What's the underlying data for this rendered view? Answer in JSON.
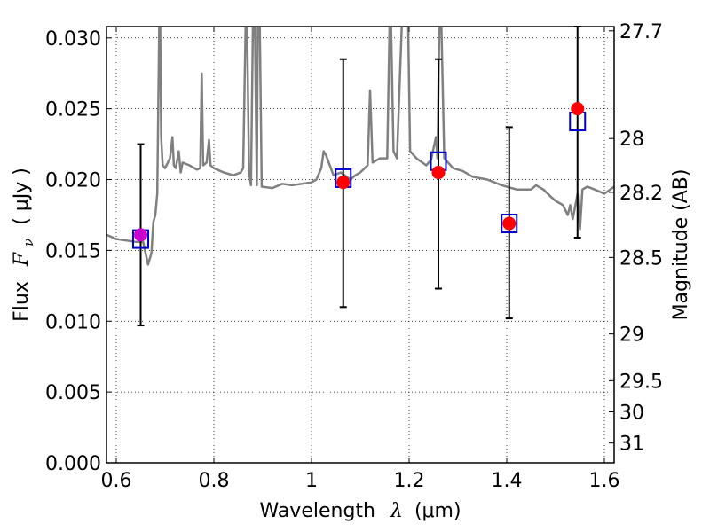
{
  "chart_data": {
    "type": "scatter",
    "xlabel": "Wavelength",
    "xlabel_symbol": "λ",
    "xlabel_unit": "(μm)",
    "ylabel": "Flux",
    "ylabel_symbol": "F",
    "ylabel_subscript": "ν",
    "ylabel_unit": "( μJy )",
    "y2label": "Magnitude (AB)",
    "xlim": [
      0.58,
      1.62
    ],
    "ylim": [
      0.0,
      0.0308
    ],
    "grid": true,
    "x_ticks": [
      0.6,
      0.8,
      1.0,
      1.2,
      1.4,
      1.6
    ],
    "x_tick_labels": [
      "0.6",
      "0.8",
      "1",
      "1.2",
      "1.4",
      "1.6"
    ],
    "y_ticks": [
      0.0,
      0.005,
      0.01,
      0.015,
      0.02,
      0.025,
      0.03
    ],
    "y_tick_labels": [
      "0.000",
      "0.005",
      "0.010",
      "0.015",
      "0.020",
      "0.025",
      "0.030"
    ],
    "y2_ticks": [
      {
        "label": "27.7",
        "flux": 0.0305
      },
      {
        "label": "28",
        "flux": 0.0229
      },
      {
        "label": "28.2",
        "flux": 0.0191
      },
      {
        "label": "28.5",
        "flux": 0.0145
      },
      {
        "label": "29",
        "flux": 0.0091
      },
      {
        "label": "29.5",
        "flux": 0.0058
      },
      {
        "label": "30",
        "flux": 0.0036
      },
      {
        "label": "31",
        "flux": 0.0014
      }
    ],
    "series": [
      {
        "kind": "spectrum",
        "color": "#808080",
        "points": [
          [
            0.58,
            0.0161
          ],
          [
            0.6,
            0.0158
          ],
          [
            0.62,
            0.0157
          ],
          [
            0.64,
            0.0156
          ],
          [
            0.655,
            0.0156
          ],
          [
            0.665,
            0.014
          ],
          [
            0.672,
            0.0148
          ],
          [
            0.676,
            0.017
          ],
          [
            0.68,
            0.0175
          ],
          [
            0.684,
            0.019
          ],
          [
            0.688,
            0.031
          ],
          [
            0.69,
            0.031
          ],
          [
            0.692,
            0.023
          ],
          [
            0.695,
            0.021
          ],
          [
            0.7,
            0.0208
          ],
          [
            0.71,
            0.0215
          ],
          [
            0.715,
            0.023
          ],
          [
            0.718,
            0.021
          ],
          [
            0.722,
            0.0208
          ],
          [
            0.728,
            0.022
          ],
          [
            0.732,
            0.0205
          ],
          [
            0.736,
            0.0212
          ],
          [
            0.75,
            0.021
          ],
          [
            0.765,
            0.0207
          ],
          [
            0.772,
            0.0208
          ],
          [
            0.775,
            0.0275
          ],
          [
            0.778,
            0.021
          ],
          [
            0.785,
            0.0212
          ],
          [
            0.79,
            0.0228
          ],
          [
            0.793,
            0.021
          ],
          [
            0.8,
            0.0208
          ],
          [
            0.82,
            0.0205
          ],
          [
            0.84,
            0.0203
          ],
          [
            0.855,
            0.0205
          ],
          [
            0.86,
            0.0208
          ],
          [
            0.865,
            0.031
          ],
          [
            0.868,
            0.031
          ],
          [
            0.872,
            0.0205
          ],
          [
            0.876,
            0.0196
          ],
          [
            0.88,
            0.031
          ],
          [
            0.884,
            0.031
          ],
          [
            0.888,
            0.0196
          ],
          [
            0.89,
            0.031
          ],
          [
            0.894,
            0.031
          ],
          [
            0.898,
            0.0195
          ],
          [
            0.92,
            0.0194
          ],
          [
            0.94,
            0.0197
          ],
          [
            0.96,
            0.0196
          ],
          [
            0.98,
            0.0197
          ],
          [
            1.0,
            0.0198
          ],
          [
            1.01,
            0.02
          ],
          [
            1.02,
            0.0208
          ],
          [
            1.025,
            0.022
          ],
          [
            1.03,
            0.0217
          ],
          [
            1.045,
            0.0203
          ],
          [
            1.06,
            0.0205
          ],
          [
            1.08,
            0.02
          ],
          [
            1.09,
            0.0203
          ],
          [
            1.1,
            0.0205
          ],
          [
            1.115,
            0.021
          ],
          [
            1.12,
            0.0263
          ],
          [
            1.125,
            0.0212
          ],
          [
            1.14,
            0.0215
          ],
          [
            1.155,
            0.0215
          ],
          [
            1.16,
            0.031
          ],
          [
            1.163,
            0.031
          ],
          [
            1.168,
            0.022
          ],
          [
            1.175,
            0.0215
          ],
          [
            1.185,
            0.031
          ],
          [
            1.188,
            0.031
          ],
          [
            1.195,
            0.031
          ],
          [
            1.198,
            0.031
          ],
          [
            1.202,
            0.022
          ],
          [
            1.215,
            0.0215
          ],
          [
            1.235,
            0.021
          ],
          [
            1.245,
            0.0214
          ],
          [
            1.255,
            0.023
          ],
          [
            1.258,
            0.0215
          ],
          [
            1.262,
            0.031
          ],
          [
            1.266,
            0.031
          ],
          [
            1.272,
            0.0215
          ],
          [
            1.29,
            0.0208
          ],
          [
            1.31,
            0.0206
          ],
          [
            1.33,
            0.0202
          ],
          [
            1.36,
            0.02
          ],
          [
            1.39,
            0.0196
          ],
          [
            1.42,
            0.0193
          ],
          [
            1.45,
            0.0193
          ],
          [
            1.46,
            0.0196
          ],
          [
            1.475,
            0.0193
          ],
          [
            1.49,
            0.0188
          ],
          [
            1.5,
            0.0185
          ],
          [
            1.515,
            0.0182
          ],
          [
            1.525,
            0.0175
          ],
          [
            1.53,
            0.0182
          ],
          [
            1.535,
            0.0172
          ],
          [
            1.545,
            0.019
          ],
          [
            1.55,
            0.0165
          ],
          [
            1.555,
            0.0193
          ],
          [
            1.565,
            0.0195
          ],
          [
            1.58,
            0.0193
          ],
          [
            1.6,
            0.019
          ],
          [
            1.62,
            0.0195
          ]
        ]
      },
      {
        "kind": "model_points",
        "marker": "open_square",
        "color": "#0000cc",
        "points": [
          [
            0.65,
            0.0158
          ],
          [
            1.065,
            0.0201
          ],
          [
            1.26,
            0.0213
          ],
          [
            1.405,
            0.0169
          ],
          [
            1.545,
            0.0241
          ]
        ]
      },
      {
        "kind": "observed_points",
        "marker": "filled_circle",
        "color": "#ff0000",
        "overlap_color": "#cc00cc",
        "points": [
          {
            "x": 0.65,
            "y": 0.0161,
            "ylow": 0.0097,
            "yhigh": 0.0225,
            "color": "#cc00cc"
          },
          {
            "x": 1.065,
            "y": 0.0198,
            "ylow": 0.011,
            "yhigh": 0.0285
          },
          {
            "x": 1.26,
            "y": 0.0205,
            "ylow": 0.0123,
            "yhigh": 0.0285
          },
          {
            "x": 1.405,
            "y": 0.0169,
            "ylow": 0.0102,
            "yhigh": 0.0237
          },
          {
            "x": 1.545,
            "y": 0.025,
            "ylow": 0.0159,
            "yhigh": 0.0308
          }
        ]
      }
    ]
  }
}
